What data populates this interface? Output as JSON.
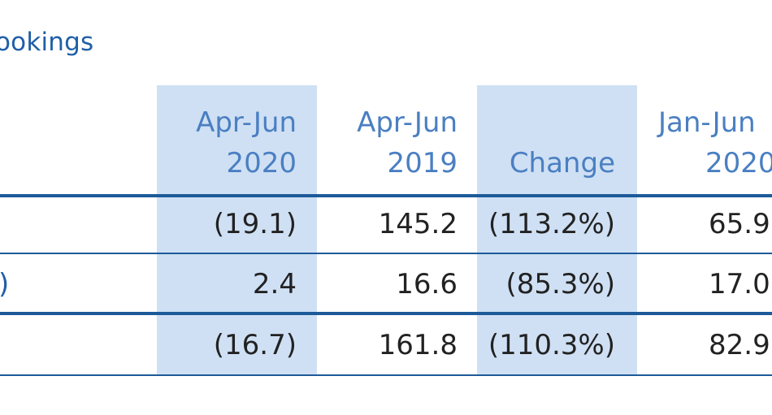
{
  "title": "ookings",
  "columns": [
    {
      "line1": "Apr-Jun",
      "line2": "2020"
    },
    {
      "line1": "Apr-Jun",
      "line2": "2019"
    },
    {
      "line1": "",
      "line2": "Change"
    },
    {
      "line1": "Jan-Jun",
      "line2": "2020"
    }
  ],
  "rows": [
    {
      "label_fragment": "",
      "values": [
        "(19.1)",
        "145.2",
        "(113.2%)",
        "65.9"
      ]
    },
    {
      "label_fragment": ")",
      "values": [
        "2.4",
        "16.6",
        "(85.3%)",
        "17.0"
      ]
    },
    {
      "label_fragment": "",
      "values": [
        "(16.7)",
        "161.8",
        "(110.3%)",
        "82.9"
      ]
    }
  ],
  "colors": {
    "header_text": "#4a7fc2",
    "title_text": "#1f5fa8",
    "shading": "#cfe0f4",
    "rule": "#1d5a99"
  }
}
